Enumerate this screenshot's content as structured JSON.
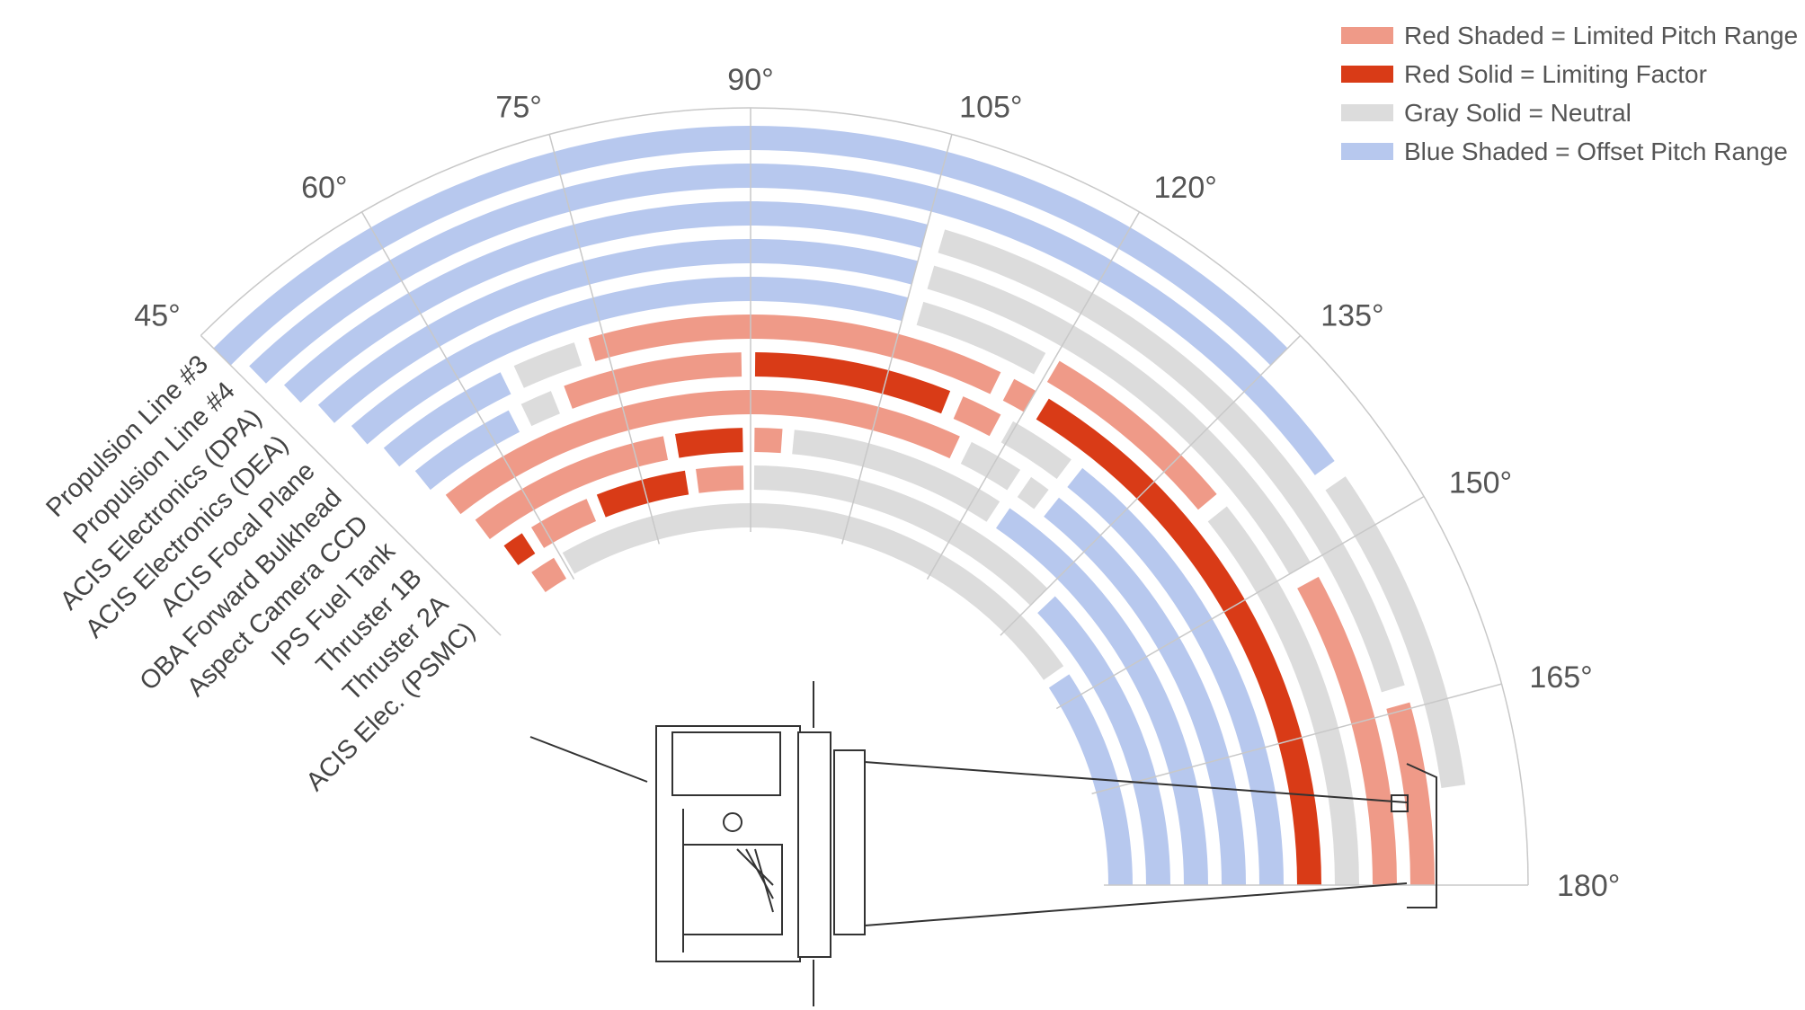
{
  "colors": {
    "limited": "#ef9a88",
    "limiting": "#d93b17",
    "neutral": "#dcdcdc",
    "offset": "#b7c8ee"
  },
  "legend": [
    {
      "label": "Red Shaded = Limited Pitch Range",
      "color": "#ef9a88"
    },
    {
      "label": "Red Solid = Limiting Factor",
      "color": "#d93b17"
    },
    {
      "label": "Gray Solid = Neutral",
      "color": "#dcdcdc"
    },
    {
      "label": "Blue Shaded = Offset Pitch Range",
      "color": "#b7c8ee"
    }
  ],
  "angle_labels": [
    "45°",
    "60°",
    "75°",
    "90°",
    "105°",
    "120°",
    "135°",
    "150°",
    "165°",
    "180°"
  ],
  "components": [
    {
      "label": "Propulsion Line #3",
      "segments": [
        {
          "start": 45,
          "end": 135,
          "status": "offset"
        }
      ]
    },
    {
      "label": "Propulsion Line #4",
      "segments": [
        {
          "start": 46,
          "end": 144,
          "status": "offset"
        },
        {
          "start": 145,
          "end": 172,
          "status": "neutral"
        }
      ]
    },
    {
      "label": "ACIS Electronics (DPA)",
      "segments": [
        {
          "start": 47,
          "end": 105,
          "status": "offset"
        },
        {
          "start": 106,
          "end": 163,
          "status": "neutral"
        },
        {
          "start": 164,
          "end": 180,
          "status": "limited"
        }
      ]
    },
    {
      "label": "ACIS Electronics (DEA)",
      "segments": [
        {
          "start": 48,
          "end": 105,
          "status": "offset"
        },
        {
          "start": 106,
          "end": 150,
          "status": "neutral"
        },
        {
          "start": 151,
          "end": 180,
          "status": "limited"
        }
      ]
    },
    {
      "label": "ACIS Focal Plane",
      "segments": [
        {
          "start": 49,
          "end": 105,
          "status": "offset"
        },
        {
          "start": 106,
          "end": 119,
          "status": "neutral"
        },
        {
          "start": 120,
          "end": 140,
          "status": "limited"
        },
        {
          "start": 141,
          "end": 180,
          "status": "neutral"
        }
      ]
    },
    {
      "label": "OBA Forward Bulkhead",
      "segments": [
        {
          "start": 50,
          "end": 64,
          "status": "offset"
        },
        {
          "start": 65,
          "end": 72,
          "status": "neutral"
        },
        {
          "start": 73,
          "end": 116,
          "status": "limited"
        },
        {
          "start": 117,
          "end": 120,
          "status": "limited"
        },
        {
          "start": 121,
          "end": 180,
          "status": "limiting"
        }
      ]
    },
    {
      "label": "Aspect Camera CCD",
      "segments": [
        {
          "start": 51,
          "end": 63,
          "status": "offset"
        },
        {
          "start": 64,
          "end": 68,
          "status": "neutral"
        },
        {
          "start": 69,
          "end": 89,
          "status": "limited"
        },
        {
          "start": 90,
          "end": 112,
          "status": "limiting"
        },
        {
          "start": 113,
          "end": 118,
          "status": "limited"
        },
        {
          "start": 119,
          "end": 127,
          "status": "neutral"
        },
        {
          "start": 128,
          "end": 180,
          "status": "offset"
        }
      ]
    },
    {
      "label": "IPS Fuel Tank",
      "segments": [
        {
          "start": 52,
          "end": 115,
          "status": "limited"
        },
        {
          "start": 116,
          "end": 123,
          "status": "neutral"
        },
        {
          "start": 124,
          "end": 127,
          "status": "neutral"
        },
        {
          "start": 128,
          "end": 180,
          "status": "offset"
        }
      ]
    },
    {
      "label": "Thruster 1B",
      "segments": [
        {
          "start": 53,
          "end": 79,
          "status": "limited"
        },
        {
          "start": 80,
          "end": 89,
          "status": "limiting"
        },
        {
          "start": 90,
          "end": 94,
          "status": "limited"
        },
        {
          "start": 95,
          "end": 123,
          "status": "neutral"
        },
        {
          "start": 124,
          "end": 180,
          "status": "offset"
        }
      ]
    },
    {
      "label": "Thruster 2A",
      "segments": [
        {
          "start": 54,
          "end": 57,
          "status": "limiting"
        },
        {
          "start": 58,
          "end": 67,
          "status": "limited"
        },
        {
          "start": 68,
          "end": 81,
          "status": "limiting"
        },
        {
          "start": 82,
          "end": 89,
          "status": "limited"
        },
        {
          "start": 90,
          "end": 135,
          "status": "neutral"
        },
        {
          "start": 136,
          "end": 180,
          "status": "offset"
        }
      ]
    },
    {
      "label": "ACIS Elec. (PSMC)",
      "segments": [
        {
          "start": 55,
          "end": 59,
          "status": "limited"
        },
        {
          "start": 60,
          "end": 145,
          "status": "neutral"
        },
        {
          "start": 146,
          "end": 180,
          "status": "offset"
        }
      ]
    }
  ]
}
